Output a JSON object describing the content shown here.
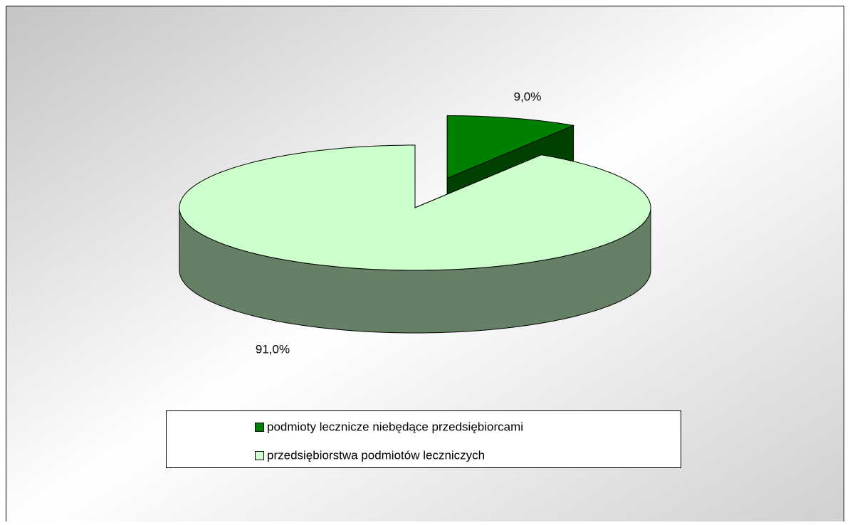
{
  "chart_data": {
    "type": "pie",
    "categories": [
      "podmioty lecznicze niebędące przedsiębiorcami",
      "przedsiębiorstwa podmiotów leczniczych"
    ],
    "values": [
      9,
      91
    ],
    "value_labels": [
      "9,0%",
      "91,0%"
    ],
    "colors": [
      "#008000",
      "#ccffcc"
    ],
    "legend": "bottom"
  }
}
